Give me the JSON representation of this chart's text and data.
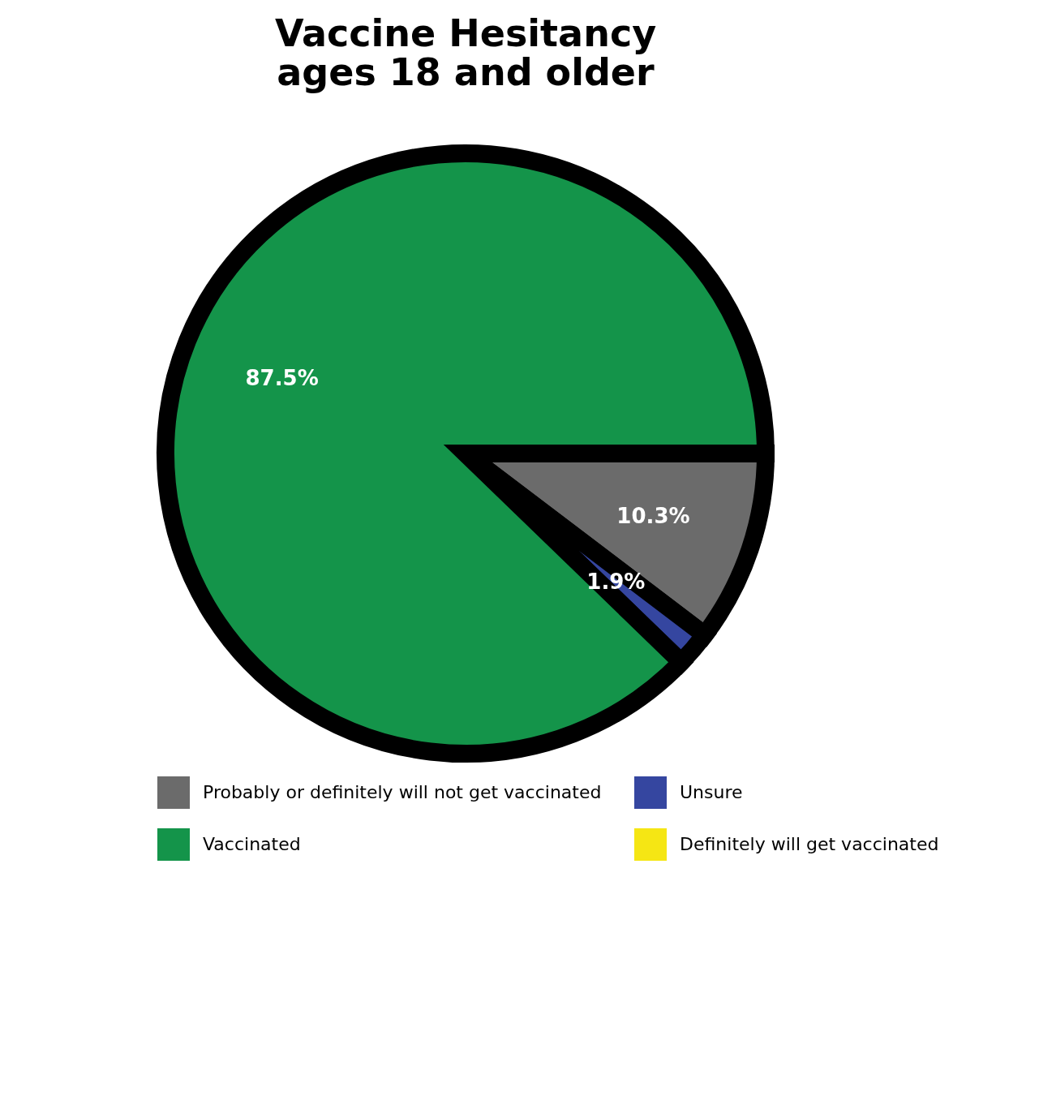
{
  "chart_data": {
    "type": "pie",
    "title": "Vaccine Hesitancy\nages 18 and older",
    "categories": [
      "Probably or definitely will not get vaccinated",
      "Unsure",
      "Vaccinated",
      "Definitely will get vaccinated"
    ],
    "values": [
      10.3,
      1.9,
      87.5,
      null
    ],
    "colors": [
      "#6b6b6b",
      "#3546a0",
      "#14944a",
      "#f5e614"
    ],
    "value_labels": [
      "10.3%",
      "1.9%",
      "87.5%",
      null
    ],
    "legend": "bottom"
  }
}
